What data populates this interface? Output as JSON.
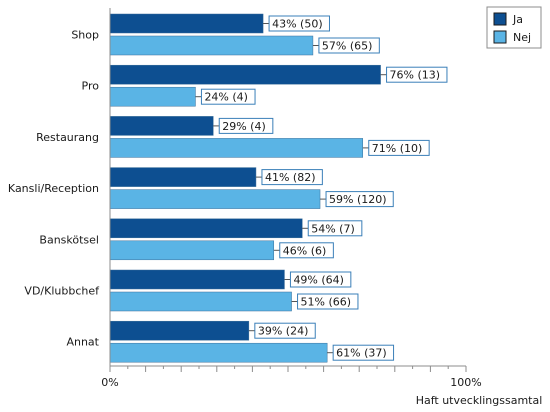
{
  "chart_data": {
    "type": "bar",
    "orientation": "horizontal",
    "categories": [
      "Shop",
      "Pro",
      "Restaurang",
      "Kansli/Reception",
      "Banskötsel",
      "VD/Klubbchef",
      "Annat"
    ],
    "series": [
      {
        "name": "Ja",
        "color": "#0d4f91",
        "values": [
          43,
          76,
          29,
          41,
          54,
          49,
          39
        ],
        "labels": [
          "43% (50)",
          "76% (13)",
          "29% (4)",
          "41% (82)",
          "54% (7)",
          "49% (64)",
          "39% (24)"
        ]
      },
      {
        "name": "Nej",
        "color": "#5ab4e5",
        "values": [
          57,
          24,
          71,
          59,
          46,
          51,
          61
        ],
        "labels": [
          "57% (65)",
          "24% (4)",
          "71% (10)",
          "59% (120)",
          "46% (6)",
          "51% (66)",
          "61% (37)"
        ]
      }
    ],
    "xlim": [
      0,
      100
    ],
    "ticks": [
      "0%",
      "100%"
    ],
    "xlabel": "Haft utvecklingssamtal",
    "legend_position": "top-right",
    "grid": false
  }
}
